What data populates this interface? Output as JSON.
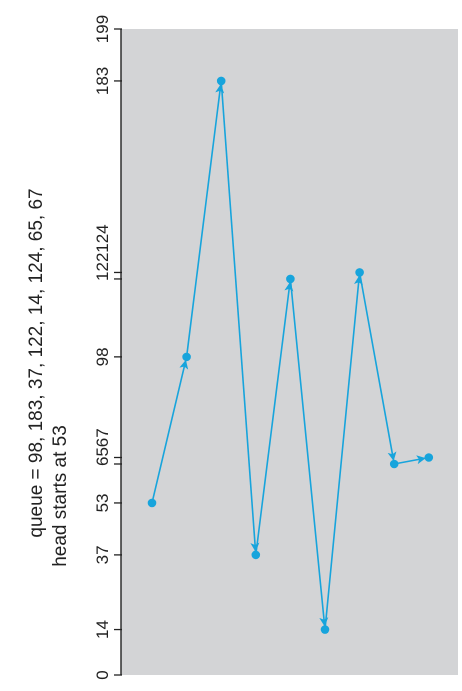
{
  "caption": {
    "line1": "queue = 98, 183, 37, 122, 14, 124, 65, 67",
    "line2": "head starts at 53"
  },
  "colors": {
    "plot_background": "#d3d4d6",
    "path": "#17a4dc",
    "axis": "#222222"
  },
  "chart_data": {
    "type": "line",
    "orientation": "cylinder axis vertical, service order horizontal",
    "y_range": [
      0,
      199
    ],
    "tick_labels": [
      {
        "value": 0,
        "label": "0"
      },
      {
        "value": 14,
        "label": "14"
      },
      {
        "value": 37,
        "label": "37"
      },
      {
        "value": 53,
        "label": "53"
      },
      {
        "value": 65,
        "label": "65"
      },
      {
        "value": 67,
        "label": "67"
      },
      {
        "value": 98,
        "label": "98"
      },
      {
        "value": 122,
        "label": "122"
      },
      {
        "value": 124,
        "label": "124"
      },
      {
        "value": 183,
        "label": "183"
      },
      {
        "value": 199,
        "label": "199"
      }
    ],
    "sequence": [
      53,
      98,
      183,
      37,
      122,
      14,
      124,
      65,
      67
    ],
    "arrows": true
  }
}
